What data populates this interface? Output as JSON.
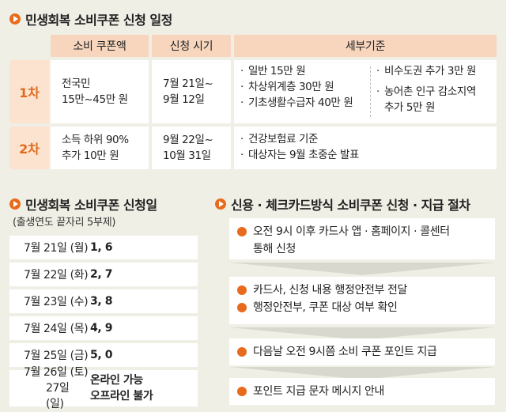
{
  "sections": {
    "schedule_title": "민생회복 소비쿠폰 신청 일정",
    "dates_title": "민생회복 소비쿠폰 신청일",
    "dates_note": "(출생연도 끝자리 5부제)",
    "procedure_title": "신용 · 체크카드방식 소비쿠폰 신청 · 지급 절차"
  },
  "schedule": {
    "headers": [
      "소비 쿠폰액",
      "신청 시기",
      "세부기준"
    ],
    "rows": [
      {
        "label": "1차",
        "amount": [
          "전국민",
          "15만~45만 원"
        ],
        "period": [
          "7월 21일~",
          "9월 12일"
        ],
        "criteria_left": [
          "일반 15만 원",
          "차상위계층 30만 원",
          "기초생활수급자 40만 원"
        ],
        "criteria_right": [
          "비수도권 추가 3만 원",
          "농어촌 인구 감소지역",
          "추가 5만 원"
        ]
      },
      {
        "label": "2차",
        "amount": [
          "소득 하위 90%",
          "추가 10만 원"
        ],
        "period": [
          "9월 22일~",
          "10월 31일"
        ],
        "criteria_left": [
          "건강보험료 기준",
          "대상자는 9월 초중순 발표"
        ]
      }
    ]
  },
  "dates": [
    {
      "date": "7월 21일 (월)",
      "digits": "1, 6"
    },
    {
      "date": "7월 22일 (화)",
      "digits": "2, 7"
    },
    {
      "date": "7월 23일 (수)",
      "digits": "3, 8"
    },
    {
      "date": "7월 24일 (목)",
      "digits": "4, 9"
    },
    {
      "date": "7월 25일 (금)",
      "digits": "5, 0"
    },
    {
      "date_lines": [
        "7월 26일 (토)",
        "27일 (일)"
      ],
      "digit_lines": [
        "온라인 가능",
        "오프라인 불가"
      ]
    }
  ],
  "procedure": [
    [
      "오전 9시 이후 카드사 앱 · 홈페이지 · 콜센터",
      "통해 신청"
    ],
    [
      "카드사, 신청 내용 행정안전부 전달",
      "행정안전부, 쿠폰 대상 여부 확인"
    ],
    [
      "다음날 오전 9시쯤 소비 쿠폰 포인트 지급"
    ],
    [
      "포인트 지급 문자 메시지 안내"
    ]
  ],
  "colors": {
    "accent": "#e86a1c",
    "header_bg": "#f7d6bd",
    "label_bg": "#fbe3cf",
    "page_bg": "#f0efe6"
  }
}
